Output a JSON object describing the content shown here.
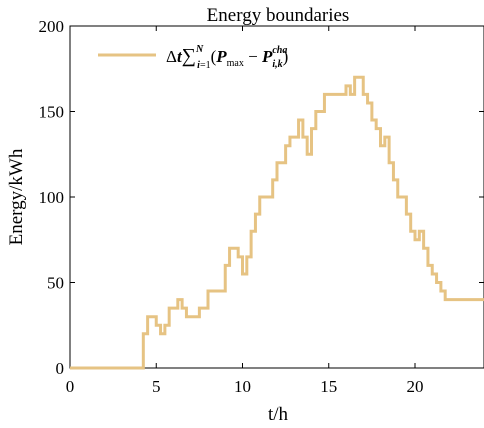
{
  "chart_data": {
    "type": "line",
    "title": "Energy boundaries",
    "xlabel": "t/h",
    "ylabel": "Energy/kWh",
    "xlim": [
      0,
      24
    ],
    "ylim": [
      0,
      200
    ],
    "xticks": [
      0,
      5,
      10,
      15,
      20
    ],
    "yticks": [
      0,
      50,
      100,
      150,
      200
    ],
    "grid": false,
    "legend_position": "top-left",
    "series": [
      {
        "name": "Δt∑_{i=1}^{N}(P_max − P_{i,k}^{cha})",
        "color": "#e6c383",
        "step": true,
        "x": [
          0,
          4.25,
          4.5,
          4.75,
          5.0,
          5.25,
          5.5,
          5.75,
          6.0,
          6.25,
          6.5,
          6.75,
          7.0,
          7.25,
          7.5,
          7.75,
          8.0,
          8.25,
          8.5,
          8.75,
          9.0,
          9.25,
          9.5,
          9.75,
          10.0,
          10.25,
          10.5,
          10.75,
          11.0,
          11.25,
          11.5,
          11.75,
          12.0,
          12.25,
          12.5,
          12.75,
          13.0,
          13.25,
          13.5,
          13.75,
          14.0,
          14.25,
          14.5,
          14.75,
          15.0,
          15.25,
          15.5,
          15.75,
          16.0,
          16.25,
          16.5,
          16.75,
          17.0,
          17.25,
          17.5,
          17.75,
          18.0,
          18.25,
          18.5,
          18.75,
          19.0,
          19.25,
          19.5,
          19.75,
          20.0,
          20.25,
          20.5,
          20.75,
          21.0,
          21.25,
          21.5,
          21.75,
          22.0,
          22.25,
          22.5,
          22.75,
          23.0,
          23.25,
          23.5,
          23.75
        ],
        "y": [
          0,
          20,
          30,
          30,
          25,
          20,
          25,
          35,
          35,
          40,
          35,
          30,
          30,
          30,
          35,
          35,
          45,
          45,
          45,
          45,
          60,
          70,
          70,
          65,
          55,
          65,
          80,
          90,
          100,
          100,
          100,
          110,
          120,
          120,
          130,
          135,
          135,
          145,
          135,
          125,
          140,
          150,
          150,
          160,
          160,
          160,
          160,
          160,
          165,
          160,
          170,
          170,
          160,
          155,
          145,
          140,
          130,
          135,
          120,
          110,
          100,
          100,
          90,
          80,
          75,
          80,
          70,
          60,
          55,
          50,
          45,
          40,
          40,
          40,
          40,
          40,
          40,
          40,
          40,
          40
        ]
      }
    ]
  }
}
